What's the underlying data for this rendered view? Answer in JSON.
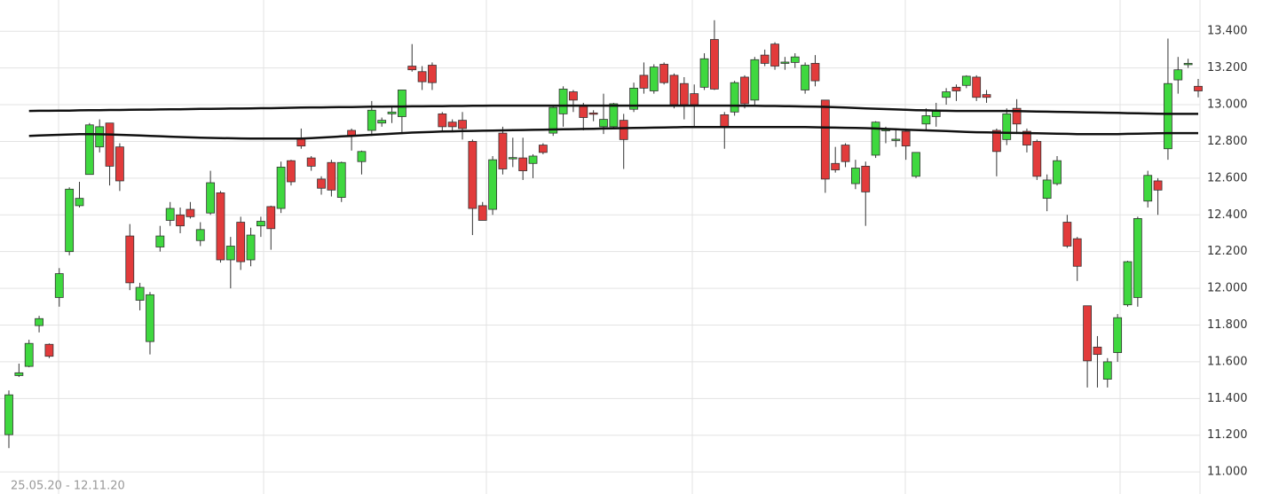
{
  "chart_data": {
    "type": "candlestick",
    "date_range": "25.05.20 - 12.11.20",
    "up_color": "#3fd83f",
    "down_color": "#e23b3b",
    "outline_color": "#333333",
    "ylim": [
      10880,
      13570
    ],
    "yticks": [
      {
        "value": 11000,
        "label": "11.000"
      },
      {
        "value": 11200,
        "label": "11.200"
      },
      {
        "value": 11400,
        "label": "11.400"
      },
      {
        "value": 11600,
        "label": "11.600"
      },
      {
        "value": 11800,
        "label": "11.800"
      },
      {
        "value": 12000,
        "label": "12.000"
      },
      {
        "value": 12200,
        "label": "12.200"
      },
      {
        "value": 12400,
        "label": "12.400"
      },
      {
        "value": 12600,
        "label": "12.600"
      },
      {
        "value": 12800,
        "label": "12.800"
      },
      {
        "value": 13000,
        "label": "13.000"
      },
      {
        "value": 13200,
        "label": "13.200"
      },
      {
        "value": 13400,
        "label": "13.400"
      }
    ],
    "grid": true,
    "candles": [
      {
        "open": 11203,
        "high": 11444,
        "low": 11130,
        "close": 11420
      },
      {
        "open": 11525,
        "high": 11590,
        "low": 11517,
        "close": 11540
      },
      {
        "open": 11575,
        "high": 11720,
        "low": 11570,
        "close": 11700
      },
      {
        "open": 11797,
        "high": 11850,
        "low": 11760,
        "close": 11835
      },
      {
        "open": 11695,
        "high": 11700,
        "low": 11620,
        "close": 11630
      },
      {
        "open": 11950,
        "high": 12110,
        "low": 11900,
        "close": 12080
      },
      {
        "open": 12200,
        "high": 12550,
        "low": 12180,
        "close": 12540
      },
      {
        "open": 12450,
        "high": 12580,
        "low": 12440,
        "close": 12490
      },
      {
        "open": 12620,
        "high": 12900,
        "low": 12620,
        "close": 12890
      },
      {
        "open": 12770,
        "high": 12920,
        "low": 12740,
        "close": 12880
      },
      {
        "open": 12900,
        "high": 12900,
        "low": 12560,
        "close": 12665
      },
      {
        "open": 12770,
        "high": 12790,
        "low": 12530,
        "close": 12585
      },
      {
        "open": 12285,
        "high": 12350,
        "low": 11990,
        "close": 12030
      },
      {
        "open": 11935,
        "high": 12030,
        "low": 11880,
        "close": 12005
      },
      {
        "open": 11710,
        "high": 11980,
        "low": 11640,
        "close": 11965
      },
      {
        "open": 12225,
        "high": 12340,
        "low": 12200,
        "close": 12285
      },
      {
        "open": 12370,
        "high": 12470,
        "low": 12340,
        "close": 12435
      },
      {
        "open": 12400,
        "high": 12440,
        "low": 12300,
        "close": 12340
      },
      {
        "open": 12430,
        "high": 12470,
        "low": 12380,
        "close": 12390
      },
      {
        "open": 12260,
        "high": 12360,
        "low": 12230,
        "close": 12320
      },
      {
        "open": 12410,
        "high": 12640,
        "low": 12400,
        "close": 12575
      },
      {
        "open": 12520,
        "high": 12530,
        "low": 12140,
        "close": 12155
      },
      {
        "open": 12155,
        "high": 12280,
        "low": 12000,
        "close": 12230
      },
      {
        "open": 12360,
        "high": 12390,
        "low": 12100,
        "close": 12145
      },
      {
        "open": 12155,
        "high": 12330,
        "low": 12120,
        "close": 12290
      },
      {
        "open": 12340,
        "high": 12390,
        "low": 12280,
        "close": 12365
      },
      {
        "open": 12445,
        "high": 12450,
        "low": 12210,
        "close": 12325
      },
      {
        "open": 12435,
        "high": 12690,
        "low": 12410,
        "close": 12660
      },
      {
        "open": 12695,
        "high": 12700,
        "low": 12560,
        "close": 12580
      },
      {
        "open": 12815,
        "high": 12870,
        "low": 12760,
        "close": 12775
      },
      {
        "open": 12710,
        "high": 12720,
        "low": 12640,
        "close": 12665
      },
      {
        "open": 12595,
        "high": 12610,
        "low": 12510,
        "close": 12545
      },
      {
        "open": 12685,
        "high": 12700,
        "low": 12500,
        "close": 12535
      },
      {
        "open": 12495,
        "high": 12690,
        "low": 12470,
        "close": 12685
      },
      {
        "open": 12860,
        "high": 12870,
        "low": 12750,
        "close": 12830
      },
      {
        "open": 12690,
        "high": 12750,
        "low": 12620,
        "close": 12745
      },
      {
        "open": 12860,
        "high": 13020,
        "low": 12830,
        "close": 12970
      },
      {
        "open": 12900,
        "high": 12930,
        "low": 12880,
        "close": 12915
      },
      {
        "open": 12950,
        "high": 12990,
        "low": 12900,
        "close": 12960
      },
      {
        "open": 12935,
        "high": 13080,
        "low": 12840,
        "close": 13080
      },
      {
        "open": 13210,
        "high": 13330,
        "low": 13180,
        "close": 13190
      },
      {
        "open": 13180,
        "high": 13210,
        "low": 13080,
        "close": 13125
      },
      {
        "open": 13215,
        "high": 13230,
        "low": 13080,
        "close": 13120
      },
      {
        "open": 12950,
        "high": 12960,
        "low": 12860,
        "close": 12880
      },
      {
        "open": 12905,
        "high": 12920,
        "low": 12860,
        "close": 12880
      },
      {
        "open": 12915,
        "high": 12960,
        "low": 12810,
        "close": 12870
      },
      {
        "open": 12800,
        "high": 12810,
        "low": 12290,
        "close": 12435
      },
      {
        "open": 12450,
        "high": 12470,
        "low": 12370,
        "close": 12370
      },
      {
        "open": 12430,
        "high": 12720,
        "low": 12400,
        "close": 12700
      },
      {
        "open": 12845,
        "high": 12880,
        "low": 12620,
        "close": 12650
      },
      {
        "open": 12705,
        "high": 12820,
        "low": 12660,
        "close": 12712
      },
      {
        "open": 12710,
        "high": 12820,
        "low": 12590,
        "close": 12640
      },
      {
        "open": 12680,
        "high": 12730,
        "low": 12600,
        "close": 12720
      },
      {
        "open": 12780,
        "high": 12790,
        "low": 12730,
        "close": 12740
      },
      {
        "open": 12845,
        "high": 12990,
        "low": 12830,
        "close": 12985
      },
      {
        "open": 12950,
        "high": 13100,
        "low": 12880,
        "close": 13085
      },
      {
        "open": 13070,
        "high": 13080,
        "low": 12960,
        "close": 13025
      },
      {
        "open": 12990,
        "high": 13010,
        "low": 12860,
        "close": 12930
      },
      {
        "open": 12955,
        "high": 12970,
        "low": 12910,
        "close": 12950
      },
      {
        "open": 12880,
        "high": 13060,
        "low": 12840,
        "close": 12920
      },
      {
        "open": 12880,
        "high": 13010,
        "low": 12870,
        "close": 13005
      },
      {
        "open": 12915,
        "high": 12950,
        "low": 12650,
        "close": 12810
      },
      {
        "open": 12975,
        "high": 13120,
        "low": 12960,
        "close": 13090
      },
      {
        "open": 13160,
        "high": 13230,
        "low": 13060,
        "close": 13090
      },
      {
        "open": 13075,
        "high": 13220,
        "low": 13060,
        "close": 13205
      },
      {
        "open": 13220,
        "high": 13230,
        "low": 13110,
        "close": 13120
      },
      {
        "open": 13160,
        "high": 13170,
        "low": 12980,
        "close": 13000
      },
      {
        "open": 13115,
        "high": 13150,
        "low": 12920,
        "close": 13000
      },
      {
        "open": 13060,
        "high": 13110,
        "low": 12880,
        "close": 13000
      },
      {
        "open": 13095,
        "high": 13280,
        "low": 13080,
        "close": 13250
      },
      {
        "open": 13355,
        "high": 13460,
        "low": 13080,
        "close": 13085
      },
      {
        "open": 12945,
        "high": 12960,
        "low": 12760,
        "close": 12880
      },
      {
        "open": 12960,
        "high": 13130,
        "low": 12940,
        "close": 13120
      },
      {
        "open": 13150,
        "high": 13160,
        "low": 12980,
        "close": 13005
      },
      {
        "open": 13025,
        "high": 13260,
        "low": 12990,
        "close": 13245
      },
      {
        "open": 13270,
        "high": 13300,
        "low": 13210,
        "close": 13225
      },
      {
        "open": 13330,
        "high": 13340,
        "low": 13190,
        "close": 13210
      },
      {
        "open": 13228,
        "high": 13260,
        "low": 13190,
        "close": 13232
      },
      {
        "open": 13230,
        "high": 13280,
        "low": 13200,
        "close": 13260
      },
      {
        "open": 13080,
        "high": 13230,
        "low": 13060,
        "close": 13215
      },
      {
        "open": 13225,
        "high": 13270,
        "low": 13100,
        "close": 13130
      },
      {
        "open": 13025,
        "high": 13025,
        "low": 12520,
        "close": 12595
      },
      {
        "open": 12680,
        "high": 12770,
        "low": 12630,
        "close": 12645
      },
      {
        "open": 12780,
        "high": 12790,
        "low": 12660,
        "close": 12690
      },
      {
        "open": 12570,
        "high": 12700,
        "low": 12540,
        "close": 12655
      },
      {
        "open": 12665,
        "high": 12690,
        "low": 12340,
        "close": 12525
      },
      {
        "open": 12725,
        "high": 12910,
        "low": 12710,
        "close": 12905
      },
      {
        "open": 12860,
        "high": 12880,
        "low": 12790,
        "close": 12865
      },
      {
        "open": 12810,
        "high": 12860,
        "low": 12770,
        "close": 12812
      },
      {
        "open": 12855,
        "high": 12870,
        "low": 12700,
        "close": 12775
      },
      {
        "open": 12610,
        "high": 12740,
        "low": 12600,
        "close": 12740
      },
      {
        "open": 12895,
        "high": 12980,
        "low": 12860,
        "close": 12940
      },
      {
        "open": 12935,
        "high": 13010,
        "low": 12880,
        "close": 12970
      },
      {
        "open": 13040,
        "high": 13090,
        "low": 13000,
        "close": 13070
      },
      {
        "open": 13095,
        "high": 13110,
        "low": 13020,
        "close": 13075
      },
      {
        "open": 13105,
        "high": 13160,
        "low": 13090,
        "close": 13155
      },
      {
        "open": 13150,
        "high": 13160,
        "low": 13020,
        "close": 13040
      },
      {
        "open": 13055,
        "high": 13080,
        "low": 13010,
        "close": 13040
      },
      {
        "open": 12860,
        "high": 12870,
        "low": 12610,
        "close": 12745
      },
      {
        "open": 12810,
        "high": 12980,
        "low": 12780,
        "close": 12950
      },
      {
        "open": 12980,
        "high": 13030,
        "low": 12840,
        "close": 12895
      },
      {
        "open": 12855,
        "high": 12870,
        "low": 12740,
        "close": 12780
      },
      {
        "open": 12800,
        "high": 12810,
        "low": 12590,
        "close": 12610
      },
      {
        "open": 12490,
        "high": 12620,
        "low": 12420,
        "close": 12590
      },
      {
        "open": 12570,
        "high": 12720,
        "low": 12560,
        "close": 12695
      },
      {
        "open": 12360,
        "high": 12400,
        "low": 12220,
        "close": 12230
      },
      {
        "open": 12270,
        "high": 12280,
        "low": 12040,
        "close": 12120
      },
      {
        "open": 11905,
        "high": 11905,
        "low": 11460,
        "close": 11605
      },
      {
        "open": 11680,
        "high": 11740,
        "low": 11460,
        "close": 11640
      },
      {
        "open": 11505,
        "high": 11620,
        "low": 11460,
        "close": 11600
      },
      {
        "open": 11650,
        "high": 11860,
        "low": 11600,
        "close": 11840
      },
      {
        "open": 11910,
        "high": 12150,
        "low": 11900,
        "close": 12145
      },
      {
        "open": 11950,
        "high": 12390,
        "low": 11900,
        "close": 12380
      },
      {
        "open": 12475,
        "high": 12640,
        "low": 12440,
        "close": 12615
      },
      {
        "open": 12585,
        "high": 12600,
        "low": 12400,
        "close": 12535
      },
      {
        "open": 12760,
        "high": 13360,
        "low": 12700,
        "close": 13115
      },
      {
        "open": 13135,
        "high": 13260,
        "low": 13060,
        "close": 13190
      },
      {
        "open": 13220,
        "high": 13250,
        "low": 13200,
        "close": 13225
      },
      {
        "open": 13100,
        "high": 13140,
        "low": 13040,
        "close": 13075
      }
    ],
    "moving_averages": [
      {
        "color": "#111111",
        "values": [
          null,
          null,
          12966,
          12967,
          12967,
          12968,
          12968,
          12969,
          12970,
          12970,
          12971,
          12971,
          12972,
          12973,
          12973,
          12974,
          12975,
          12975,
          12976,
          12977,
          12977,
          12978,
          12979,
          12979,
          12980,
          12981,
          12981,
          12982,
          12983,
          12984,
          12985,
          12985,
          12986,
          12987,
          12987,
          12988,
          12989,
          12989,
          12990,
          12990,
          12991,
          12991,
          12992,
          12992,
          12993,
          12993,
          12994,
          12994,
          12995,
          12995,
          12995,
          12995,
          12995,
          12995,
          12995,
          12995,
          12995,
          12995,
          12995,
          12995,
          12995,
          12995,
          12995,
          12995,
          12995,
          12995,
          12995,
          12995,
          12995,
          12995,
          12995,
          12995,
          12995,
          12994,
          12994,
          12993,
          12993,
          12992,
          12991,
          12990,
          12989,
          12988,
          12986,
          12984,
          12982,
          12980,
          12978,
          12976,
          12974,
          12972,
          12970,
          12969,
          12968,
          12967,
          12966,
          12966,
          12966,
          12966,
          12966,
          12966,
          12965,
          12964,
          12963,
          12962,
          12961,
          12960,
          12959,
          12958,
          12957,
          12956,
          12955,
          12954,
          12953,
          12952,
          12951,
          12950,
          12950,
          12950,
          12950
        ]
      },
      {
        "color": "#111111",
        "values": [
          null,
          null,
          12830,
          12832,
          12834,
          12836,
          12838,
          12840,
          12840,
          12839,
          12838,
          12836,
          12834,
          12832,
          12830,
          12828,
          12826,
          12824,
          12822,
          12820,
          12819,
          12818,
          12817,
          12816,
          12815,
          12815,
          12815,
          12815,
          12815,
          12815,
          12818,
          12821,
          12824,
          12827,
          12830,
          12833,
          12836,
          12839,
          12842,
          12845,
          12848,
          12850,
          12852,
          12854,
          12855,
          12856,
          12857,
          12858,
          12859,
          12860,
          12861,
          12862,
          12863,
          12864,
          12865,
          12866,
          12867,
          12868,
          12869,
          12870,
          12871,
          12872,
          12873,
          12874,
          12875,
          12876,
          12877,
          12878,
          12878,
          12878,
          12878,
          12878,
          12878,
          12878,
          12878,
          12878,
          12878,
          12878,
          12878,
          12878,
          12877,
          12876,
          12875,
          12874,
          12873,
          12872,
          12870,
          12868,
          12866,
          12864,
          12862,
          12860,
          12858,
          12856,
          12854,
          12852,
          12850,
          12849,
          12848,
          12847,
          12846,
          12845,
          12844,
          12843,
          12842,
          12841,
          12840,
          12840,
          12840,
          12840,
          12840,
          12841,
          12842,
          12843,
          12844,
          12845,
          12845,
          12845,
          12845
        ]
      }
    ]
  }
}
